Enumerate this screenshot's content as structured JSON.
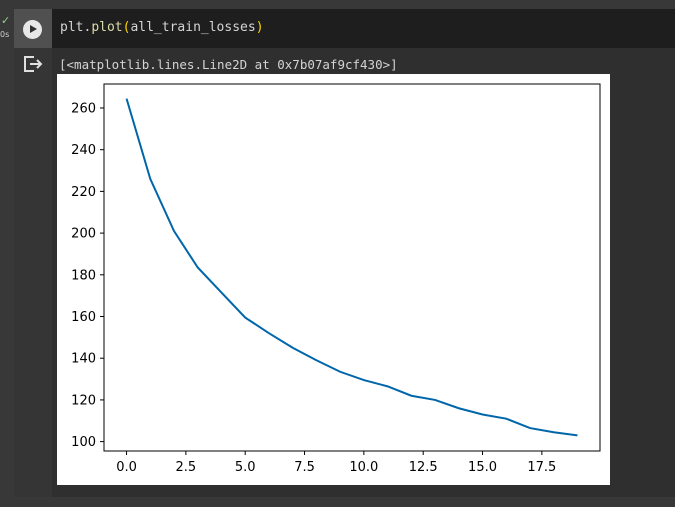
{
  "exec_status": {
    "check": "✓",
    "time": "0s"
  },
  "cell": {
    "code_object": "plt",
    "code_dot": ".",
    "code_fn": "plot",
    "code_open": "(",
    "code_arg": "all_train_losses",
    "code_close": ")",
    "output_text": "[<matplotlib.lines.Line2D at 0x7b07af9cf430>]"
  },
  "icons": {
    "run": "play-icon",
    "output": "output-redirect-icon"
  },
  "colors": {
    "line": "#0066aa",
    "background": "#383838",
    "editor": "#1e1e1e"
  },
  "chart_data": {
    "type": "line",
    "title": "",
    "xlabel": "",
    "ylabel": "",
    "x": [
      0,
      1,
      2,
      3,
      4,
      5,
      6,
      7,
      8,
      9,
      10,
      11,
      12,
      13,
      14,
      15,
      16,
      17,
      18,
      19
    ],
    "series": [
      {
        "values": [
          264.5,
          226,
          201,
          183.5,
          171.5,
          159.5,
          152,
          145,
          139,
          133.5,
          129.5,
          126.5,
          122,
          120,
          116,
          113,
          111,
          106.5,
          104.5,
          103
        ]
      }
    ],
    "xlim": [
      -0.95,
      19.95
    ],
    "ylim": [
      95.5,
      271.5
    ],
    "xticks": [
      "0.0",
      "2.5",
      "5.0",
      "7.5",
      "10.0",
      "12.5",
      "15.0",
      "17.5"
    ],
    "xtick_values": [
      0,
      2.5,
      5,
      7.5,
      10,
      12.5,
      15,
      17.5
    ],
    "yticks": [
      "100",
      "120",
      "140",
      "160",
      "180",
      "200",
      "220",
      "240",
      "260"
    ],
    "ytick_values": [
      100,
      120,
      140,
      160,
      180,
      200,
      220,
      240,
      260
    ],
    "grid": false
  }
}
